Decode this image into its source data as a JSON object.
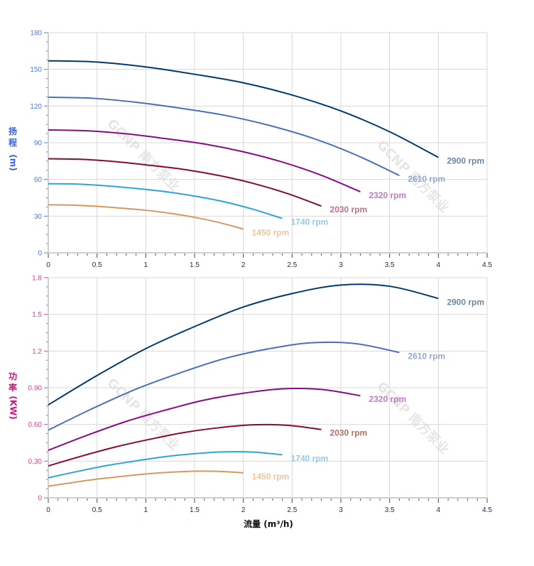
{
  "watermark": "GCNP 南方泵业",
  "chart_data": [
    {
      "type": "line",
      "ylabel": [
        "扬",
        "程",
        "(m)"
      ],
      "ylabel_color": "#3a5fd8",
      "ytick_color": "#4a7be8",
      "xlim": [
        0,
        4.5
      ],
      "ylim": [
        0,
        180
      ],
      "xticks": [
        "0",
        "0.5",
        "1",
        "1.5",
        "2",
        "2.5",
        "3",
        "3.5",
        "4",
        "4.5"
      ],
      "yticks": [
        "0",
        "30",
        "60",
        "90",
        "120",
        "150",
        "180"
      ],
      "grid": true,
      "series": [
        {
          "name": "2900 rpm",
          "color": "#003b6f",
          "label_color": "#6f86a3",
          "x": [
            0,
            0.5,
            1,
            1.5,
            2,
            2.5,
            3,
            3.5,
            4
          ],
          "y": [
            157,
            156,
            152,
            146,
            139,
            129,
            116,
            99,
            78
          ]
        },
        {
          "name": "2610 rpm",
          "color": "#4a6fbf",
          "label_color": "#97a7d3",
          "x": [
            0,
            0.45,
            0.9,
            1.35,
            1.8,
            2.25,
            2.7,
            3.15,
            3.6
          ],
          "y": [
            127.2,
            126.4,
            123.1,
            118.3,
            112.6,
            104.5,
            94.0,
            80.2,
            63.2
          ]
        },
        {
          "name": "2320 rpm",
          "color": "#8b0a8b",
          "label_color": "#c279c4",
          "x": [
            0,
            0.4,
            0.8,
            1.2,
            1.6,
            2.0,
            2.4,
            2.8,
            3.2
          ],
          "y": [
            100.5,
            99.8,
            97.3,
            93.4,
            89.0,
            82.6,
            74.2,
            63.4,
            49.9
          ]
        },
        {
          "name": "2030 rpm",
          "color": "#8b0a30",
          "label_color": "#c2708d",
          "x": [
            0,
            0.35,
            0.7,
            1.05,
            1.4,
            1.75,
            2.1,
            2.45,
            2.8
          ],
          "y": [
            76.9,
            76.4,
            74.5,
            71.5,
            68.1,
            63.2,
            56.8,
            48.5,
            38.2
          ]
        },
        {
          "name": "1740 rpm",
          "color": "#2ea3e0",
          "label_color": "#94cbec",
          "x": [
            0,
            0.3,
            0.6,
            0.9,
            1.2,
            1.5,
            1.8,
            2.1,
            2.4
          ],
          "y": [
            56.5,
            56.2,
            54.7,
            52.6,
            50.0,
            46.4,
            41.8,
            35.6,
            28.1
          ]
        },
        {
          "name": "1450 rpm",
          "color": "#d59a5c",
          "label_color": "#ecc59d",
          "x": [
            0,
            0.25,
            0.5,
            0.75,
            1.0,
            1.25,
            1.5,
            1.75,
            2.0
          ],
          "y": [
            39.3,
            39.0,
            38.0,
            36.5,
            34.8,
            32.3,
            29.0,
            24.8,
            19.5
          ]
        }
      ]
    },
    {
      "type": "line",
      "ylabel": [
        "功",
        "率",
        "(KW)"
      ],
      "ylabel_color": "#c8157a",
      "ytick_color": "#d04a8e",
      "xlabel": "流量 (m³/h)",
      "xlim": [
        0,
        4.5
      ],
      "ylim": [
        0,
        1.8
      ],
      "xticks": [
        "0",
        "0.5",
        "1",
        "1.5",
        "2",
        "2.5",
        "3",
        "3.5",
        "4",
        "4.5"
      ],
      "yticks": [
        "0",
        "0.30",
        "0.60",
        "0.90",
        "1.2",
        "1.5",
        "1.8"
      ],
      "grid": true,
      "series": [
        {
          "name": "2900 rpm",
          "color": "#003b6f",
          "label_color": "#6f8aa0",
          "x": [
            0,
            0.5,
            1,
            1.5,
            2,
            2.5,
            3,
            3.5,
            4
          ],
          "y": [
            0.76,
            1.0,
            1.22,
            1.4,
            1.56,
            1.67,
            1.74,
            1.73,
            1.63
          ]
        },
        {
          "name": "2610 rpm",
          "color": "#4a6fbf",
          "label_color": "#97a7d3",
          "x": [
            0,
            0.45,
            0.9,
            1.35,
            1.8,
            2.25,
            2.7,
            3.15,
            3.6
          ],
          "y": [
            0.554,
            0.729,
            0.889,
            1.021,
            1.137,
            1.217,
            1.268,
            1.261,
            1.188
          ]
        },
        {
          "name": "2320 rpm",
          "color": "#8b0a8b",
          "label_color": "#c279c4",
          "x": [
            0,
            0.4,
            0.8,
            1.2,
            1.6,
            2.0,
            2.4,
            2.8,
            3.2
          ],
          "y": [
            0.389,
            0.512,
            0.625,
            0.717,
            0.799,
            0.855,
            0.891,
            0.886,
            0.835
          ]
        },
        {
          "name": "2030 rpm",
          "color": "#8b0a30",
          "label_color": "#b07060",
          "x": [
            0,
            0.35,
            0.7,
            1.05,
            1.4,
            1.75,
            2.1,
            2.45,
            2.8
          ],
          "y": [
            0.261,
            0.343,
            0.418,
            0.48,
            0.535,
            0.573,
            0.597,
            0.593,
            0.559
          ]
        },
        {
          "name": "1740 rpm",
          "color": "#2ea3e0",
          "label_color": "#94cbec",
          "x": [
            0,
            0.3,
            0.6,
            0.9,
            1.2,
            1.5,
            1.8,
            2.1,
            2.4
          ],
          "y": [
            0.164,
            0.216,
            0.264,
            0.302,
            0.337,
            0.361,
            0.376,
            0.374,
            0.352
          ]
        },
        {
          "name": "1450 rpm",
          "color": "#d59a5c",
          "label_color": "#ecc59d",
          "x": [
            0,
            0.25,
            0.5,
            0.75,
            1.0,
            1.25,
            1.5,
            1.75,
            2.0
          ],
          "y": [
            0.095,
            0.125,
            0.153,
            0.175,
            0.195,
            0.209,
            0.218,
            0.216,
            0.204
          ]
        }
      ]
    }
  ]
}
